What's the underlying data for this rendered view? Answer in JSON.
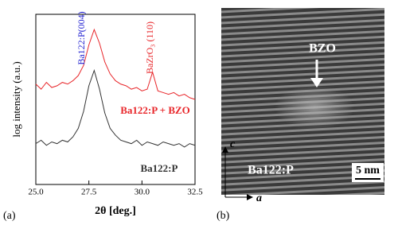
{
  "chart_data": {
    "type": "line",
    "x_label": "2θ [deg.]",
    "y_label": "log intensity (a.u.)",
    "xlim": [
      25,
      32.5
    ],
    "ylim": [
      0,
      10
    ],
    "xticks": [
      {
        "value": 25,
        "label": "25.0"
      },
      27.5,
      {
        "value": 30,
        "label": "30.0"
      },
      32.5
    ],
    "x": [
      25,
      25.25,
      25.5,
      25.75,
      26,
      26.25,
      26.5,
      26.75,
      27,
      27.25,
      27.5,
      27.75,
      28,
      28.25,
      28.5,
      28.75,
      29,
      29.25,
      29.5,
      29.75,
      30,
      30.25,
      30.5,
      30.75,
      31,
      31.25,
      31.5,
      31.75,
      32,
      32.25,
      32.5
    ],
    "series": [
      {
        "name": "Ba122:P + BZO",
        "color": "#e8262a",
        "values": [
          5.9,
          5.6,
          6.0,
          5.7,
          5.8,
          6.0,
          5.9,
          6.1,
          6.4,
          7.0,
          8.2,
          9.1,
          8.3,
          7.2,
          6.5,
          6.1,
          5.9,
          5.8,
          5.6,
          5.7,
          5.5,
          5.6,
          6.6,
          5.5,
          5.4,
          5.3,
          5.4,
          5.2,
          5.3,
          5.1,
          5.0
        ]
      },
      {
        "name": "Ba122:P",
        "color": "#333333",
        "values": [
          2.4,
          2.6,
          2.3,
          2.5,
          2.4,
          2.6,
          2.5,
          2.8,
          3.3,
          4.3,
          5.8,
          6.7,
          5.6,
          4.2,
          3.3,
          2.9,
          2.6,
          2.5,
          2.4,
          2.6,
          2.3,
          2.5,
          2.4,
          2.3,
          2.5,
          2.4,
          2.3,
          2.4,
          2.2,
          2.4,
          2.3
        ]
      }
    ],
    "annotations": [
      {
        "text": "Ba122:P(004)",
        "color": "#1f1fd0"
      },
      {
        "text": "BaZrO₃ (110)",
        "color": "#e8262a"
      }
    ]
  },
  "panel_labels": [
    "(a)",
    "(b)"
  ],
  "tem_image": {
    "labels": [
      "BZO",
      "Ba122:P"
    ],
    "scale_bar": "5 nm",
    "axes": [
      "c",
      "a"
    ]
  }
}
